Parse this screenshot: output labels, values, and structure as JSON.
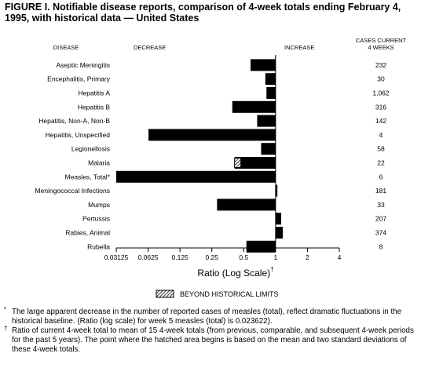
{
  "figure": {
    "title": "FIGURE I. Notifiable disease reports, comparison of 4-week totals ending February 4, 1995, with historical data — United States"
  },
  "header": {
    "disease": "DISEASE",
    "decrease": "DECREASE",
    "increase": "INCREASE",
    "cases_line1": "CASES CURRENT",
    "cases_line2": "4 WEEKS"
  },
  "legend": {
    "label": "BEYOND HISTORICAL LIMITS"
  },
  "footnotes": [
    {
      "mark": "*",
      "text": "The large apparent decrease in the number of reported cases of measles (total), reflect dramatic fluctuations in the historical baseline. (Ratio (log scale) for week 5 measles (total) is 0.023622)."
    },
    {
      "mark": "†",
      "text": "Ratio of current 4-week total to mean of 15 4-week totals (from previous, comparable, and subsequent 4-week periods for the past 5 years). The point where the hatched area begins is based on the mean and two standard deviations of these 4-week totals."
    }
  ],
  "chart_data": {
    "type": "bar",
    "orientation": "horizontal",
    "categories": [
      "Aseptic Meningitis",
      "Encephalitis, Primary",
      "Hepatitis A",
      "Hepatitis B",
      "Hepatitis, Non-A, Non-B",
      "Hepatitis, Unspecified",
      "Legionellosis",
      "Malaria",
      "Measles, Total*",
      "Meningococcal Infections",
      "Mumps",
      "Pertussis",
      "Rabies, Animal",
      "Rubella"
    ],
    "values": [
      0.58,
      0.8,
      0.82,
      0.39,
      0.67,
      0.063,
      0.73,
      0.41,
      0.03125,
      1.04,
      0.28,
      1.13,
      1.17,
      0.53
    ],
    "cases": [
      "232",
      "30",
      "1,062",
      "316",
      "142",
      "4",
      "58",
      "22",
      "6",
      "181",
      "33",
      "207",
      "374",
      "8"
    ],
    "hatched_from": {
      "Malaria": 0.47
    },
    "baseline": 1,
    "x_scale": "log2",
    "xlim": [
      0.03125,
      4
    ],
    "xticks": [
      "0.03125",
      "0.0625",
      "0.125",
      "0.25",
      "0.5",
      "1",
      "2",
      "4"
    ],
    "xlabel": "Ratio (Log Scale)",
    "xlabel_mark": "†",
    "legend_placement": "bottom-center"
  }
}
